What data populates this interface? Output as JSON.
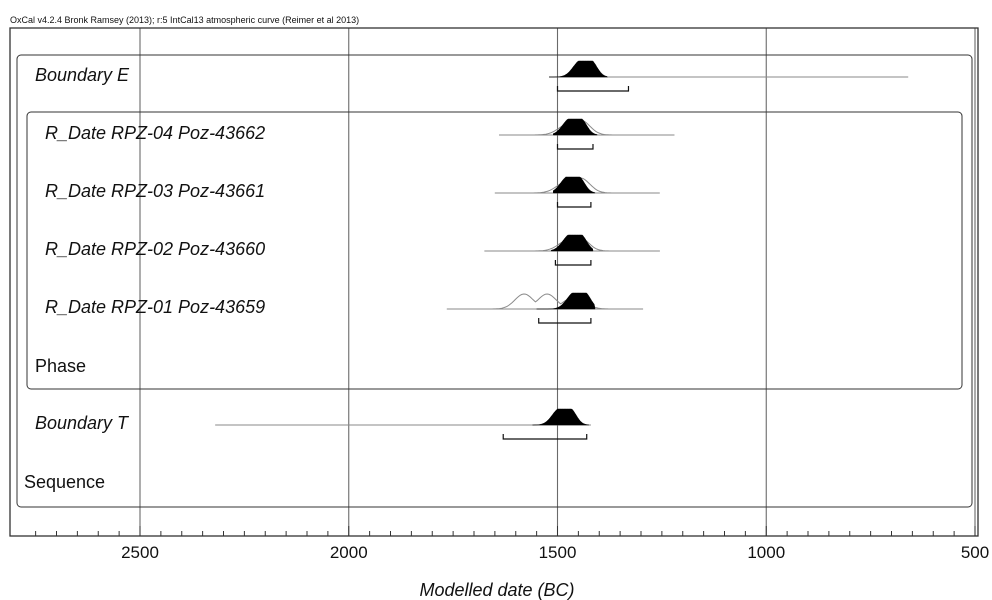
{
  "header_text": "OxCal v4.2.4 Bronk Ramsey (2013); r:5 IntCal13 atmospheric curve (Reimer et al 2013)",
  "colors": {
    "grid": "#6a6a6a",
    "frame": "#333333",
    "posterior": "#000000",
    "prior": "#8a8a8a"
  },
  "chart_data": {
    "type": "oxcal-multiplot",
    "xlabel": "Modelled date (BC)",
    "x_reversed": true,
    "xlim": [
      2800,
      500
    ],
    "x_ticks": [
      2500,
      2000,
      1500,
      1000,
      500
    ],
    "grid": true,
    "groups": [
      {
        "name": "Sequence",
        "style": "plain"
      },
      {
        "name": "Phase",
        "style": "plain"
      }
    ],
    "items": [
      {
        "name": "Boundary E",
        "style": "italic",
        "range": [
          1520,
          660
        ],
        "posterior_peak": 1445,
        "posterior_span": [
          1520,
          1380
        ],
        "hpd": [
          1500,
          1330
        ],
        "prior_peaks": []
      },
      {
        "name": "R_Date RPZ-04 Poz-43662",
        "style": "italic",
        "range": [
          1640,
          1220
        ],
        "posterior_peak": 1470,
        "posterior_span": [
          1510,
          1405
        ],
        "hpd": [
          1500,
          1415
        ],
        "prior_peaks": [
          1445
        ]
      },
      {
        "name": "R_Date RPZ-03 Poz-43661",
        "style": "italic",
        "range": [
          1650,
          1255
        ],
        "posterior_peak": 1475,
        "posterior_span": [
          1510,
          1410
        ],
        "hpd": [
          1500,
          1420
        ],
        "prior_peaks": [
          1445
        ]
      },
      {
        "name": "R_Date RPZ-02 Poz-43660",
        "style": "italic",
        "range": [
          1675,
          1255
        ],
        "posterior_peak": 1470,
        "posterior_span": [
          1515,
          1415
        ],
        "hpd": [
          1505,
          1420
        ],
        "prior_peaks": [
          1450
        ]
      },
      {
        "name": "R_Date RPZ-01 Poz-43659",
        "style": "italic",
        "range": [
          1765,
          1295
        ],
        "posterior_peak": 1460,
        "posterior_span": [
          1550,
          1410
        ],
        "hpd": [
          1545,
          1420
        ],
        "prior_peaks": [
          1580,
          1525
        ]
      },
      {
        "name": "Boundary T",
        "style": "italic",
        "range": [
          2320,
          1420
        ],
        "posterior_peak": 1495,
        "posterior_span": [
          1560,
          1425
        ],
        "hpd": [
          1630,
          1430
        ],
        "prior_peaks": []
      }
    ]
  }
}
